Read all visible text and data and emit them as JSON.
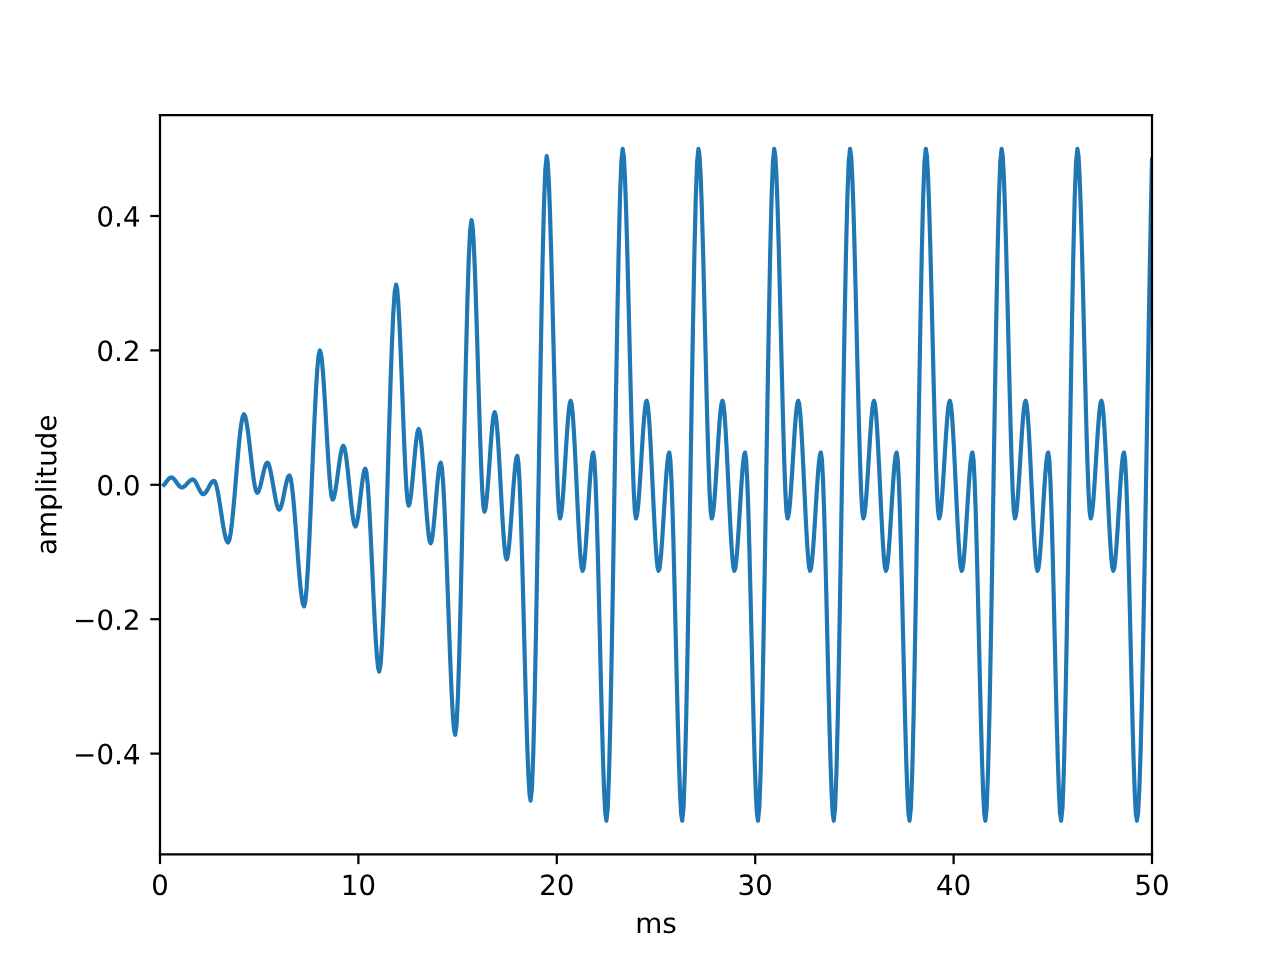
{
  "chart_data": {
    "type": "line",
    "xlabel": "ms",
    "ylabel": "amplitude",
    "xlim": [
      0,
      50
    ],
    "ylim": [
      -0.55,
      0.55
    ],
    "xticks": [
      0,
      10,
      20,
      30,
      40,
      50
    ],
    "yticks": [
      {
        "value": -0.4,
        "label": "−0.4"
      },
      {
        "value": -0.2,
        "label": "−0.2"
      },
      {
        "value": 0,
        "label": "0.0"
      },
      {
        "value": 0.2,
        "label": "0.2"
      },
      {
        "value": 0.4,
        "label": "0.4"
      }
    ],
    "grid": false,
    "legend": false,
    "marker": "none",
    "line_style": "solid",
    "series": [
      {
        "color": "#1f77b4",
        "x": [
          0.2,
          0.57,
          1.1,
          1.65,
          2.18,
          2.72,
          3.43,
          4.23,
          4.9,
          5.41,
          6.01,
          6.52,
          7.26,
          8.06,
          8.7,
          9.24,
          9.85,
          10.35,
          11.05,
          11.9,
          12.53,
          13.04,
          13.64,
          14.15,
          14.88,
          15.7,
          16.35,
          16.87,
          17.47,
          18.01,
          18.68,
          19.49,
          20.16,
          20.7,
          21.3,
          21.84,
          22.5,
          23.32,
          23.99,
          24.53,
          25.13,
          25.67,
          26.32,
          27.14,
          27.81,
          28.35,
          28.95,
          29.49,
          30.14,
          30.96,
          31.63,
          32.17,
          32.77,
          33.31,
          33.96,
          34.78,
          35.45,
          35.99,
          36.59,
          37.13,
          37.78,
          38.6,
          39.27,
          39.81,
          40.41,
          40.95,
          41.6,
          42.42,
          43.09,
          43.63,
          44.23,
          44.77,
          45.42,
          46.24,
          46.91,
          47.45,
          48.05,
          48.59,
          49.24,
          50
        ],
        "values": [
          0.0,
          0.011,
          -0.004,
          0.008,
          -0.014,
          0.006,
          -0.086,
          0.105,
          -0.012,
          0.033,
          -0.037,
          0.014,
          -0.181,
          0.2,
          -0.022,
          0.058,
          -0.062,
          0.024,
          -0.278,
          0.298,
          -0.031,
          0.083,
          -0.087,
          0.033,
          -0.372,
          0.394,
          -0.04,
          0.108,
          -0.111,
          0.043,
          -0.47,
          0.489,
          -0.05,
          0.125,
          -0.128,
          0.048,
          -0.5,
          0.5,
          -0.05,
          0.125,
          -0.128,
          0.048,
          -0.5,
          0.5,
          -0.05,
          0.125,
          -0.128,
          0.048,
          -0.5,
          0.5,
          -0.05,
          0.125,
          -0.128,
          0.048,
          -0.5,
          0.5,
          -0.05,
          0.125,
          -0.128,
          0.048,
          -0.5,
          0.5,
          -0.05,
          0.125,
          -0.128,
          0.048,
          -0.5,
          0.5,
          -0.05,
          0.125,
          -0.128,
          0.048,
          -0.5,
          0.5,
          -0.05,
          0.125,
          -0.128,
          0.048,
          -0.5,
          0.484
        ]
      }
    ]
  }
}
